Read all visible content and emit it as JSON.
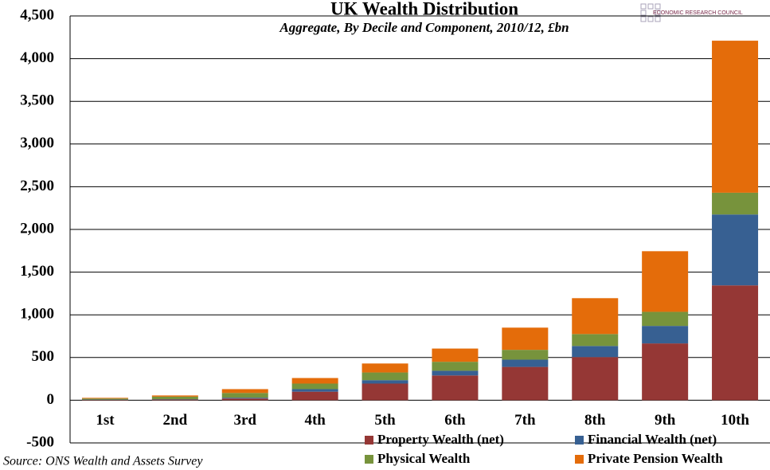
{
  "chart_data": {
    "type": "stacked-bar",
    "title": "UK Wealth Distribution",
    "subtitle": "Aggregate, By Decile and Component, 2010/12, £bn",
    "source": "Source: ONS Wealth and Assets Survey",
    "logo": "ECONOMIC RESEARCH COUNCIL",
    "categories": [
      "1st",
      "2nd",
      "3rd",
      "4th",
      "5th",
      "6th",
      "7th",
      "8th",
      "9th",
      "10th"
    ],
    "series": [
      {
        "name": "Property Wealth (net)",
        "color": "#953735",
        "values": [
          5,
          8,
          20,
          100,
          195,
          290,
          390,
          505,
          665,
          1345
        ]
      },
      {
        "name": "Financial Wealth (net)",
        "color": "#376092",
        "values": [
          3,
          4,
          10,
          30,
          40,
          55,
          85,
          130,
          205,
          830
        ]
      },
      {
        "name": "Physical Wealth",
        "color": "#77933c",
        "values": [
          12,
          30,
          55,
          65,
          90,
          105,
          115,
          140,
          165,
          255
        ]
      },
      {
        "name": "Private Pension Wealth",
        "color": "#e46c0a",
        "values": [
          8,
          14,
          45,
          65,
          105,
          155,
          260,
          420,
          710,
          1780
        ]
      }
    ],
    "ylim": [
      -500,
      4500
    ],
    "yticks": [
      -500,
      0,
      500,
      {
        "value": 1000,
        "label": "1,000"
      },
      {
        "value": 1500,
        "label": "1,500"
      },
      {
        "value": 2000,
        "label": "2,000"
      },
      {
        "value": 2500,
        "label": "2,500"
      },
      {
        "value": 3000,
        "label": "3,000"
      },
      {
        "value": 3500,
        "label": "3,500"
      },
      {
        "value": 4000,
        "label": "4,000"
      },
      {
        "value": 4500,
        "label": "4,500"
      }
    ],
    "grid": true,
    "legend": "bottom-right"
  }
}
